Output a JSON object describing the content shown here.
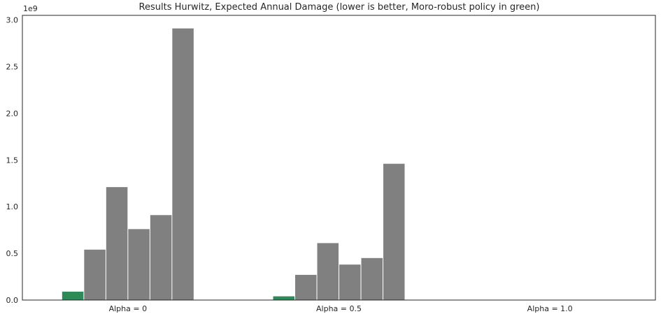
{
  "chart_data": {
    "type": "bar",
    "title": "Results Hurwitz, Expected Annual Damage (lower is better, Moro-robust policy in green)",
    "xlabel": "",
    "ylabel": "",
    "y_offset_label": "1e9",
    "y_scale": 1000000000,
    "ylim": [
      0,
      3.05
    ],
    "y_ticks": [
      0.0,
      0.5,
      1.0,
      1.5,
      2.0,
      2.5,
      3.0
    ],
    "y_tick_labels": [
      "0.0",
      "0.5",
      "1.0",
      "1.5",
      "2.0",
      "2.5",
      "3.0"
    ],
    "categories": [
      "Alpha = 0",
      "Alpha = 0.5",
      "Alpha = 1.0"
    ],
    "grid": false,
    "legend": "none",
    "colors": {
      "highlight": "#2e8b57",
      "default": "#808080"
    },
    "groups": [
      {
        "category": "Alpha = 0",
        "values": [
          0.09,
          0.54,
          1.21,
          0.76,
          0.91,
          2.91
        ],
        "highlight_index": 0
      },
      {
        "category": "Alpha = 0.5",
        "values": [
          0.04,
          0.27,
          0.61,
          0.38,
          0.45,
          1.46
        ],
        "highlight_index": 0
      },
      {
        "category": "Alpha = 1.0",
        "values": [],
        "highlight_index": null
      }
    ]
  }
}
